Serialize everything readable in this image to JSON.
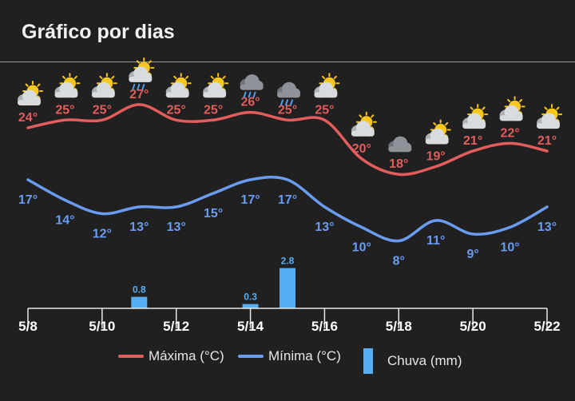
{
  "header": {
    "title": "Gráfico por dias"
  },
  "colors": {
    "max": "#e35d5d",
    "min": "#6a9cf2",
    "rain": "#57aef2",
    "axis": "#e8e8e8",
    "bg": "#202020"
  },
  "legend": {
    "max_label": "Máxima (°C)",
    "min_label": "Mínima (°C)",
    "rain_label": "Chuva (mm)"
  },
  "chart_data": {
    "type": "line",
    "x_tick_labels": [
      "5/8",
      "5/10",
      "5/12",
      "5/14",
      "5/16",
      "5/18",
      "5/20",
      "5/22"
    ],
    "days": [
      "5/8",
      "5/9",
      "5/10",
      "5/11",
      "5/12",
      "5/13",
      "5/14",
      "5/15",
      "5/16",
      "5/17",
      "5/18",
      "5/19",
      "5/20",
      "5/21",
      "5/22"
    ],
    "series": [
      {
        "name": "Máxima (°C)",
        "values": [
          24,
          25,
          25,
          27,
          25,
          25,
          26,
          25,
          25,
          20,
          18,
          19,
          21,
          22,
          21
        ],
        "labels": [
          "24°",
          "25°",
          "25°",
          "27°",
          "25°",
          "25°",
          "26°",
          "25°",
          "25°",
          "20°",
          "18°",
          "19°",
          "21°",
          "22°",
          "21°"
        ]
      },
      {
        "name": "Mínima (°C)",
        "values": [
          17,
          14,
          12,
          13,
          13,
          15,
          17,
          17,
          13,
          10,
          8,
          11,
          9,
          10,
          13
        ],
        "labels": [
          "17°",
          "14°",
          "12°",
          "13°",
          "13°",
          "15°",
          "17°",
          "17°",
          "13°",
          "10°",
          "8°",
          "11°",
          "9°",
          "10°",
          "13°"
        ]
      }
    ],
    "rain": {
      "name": "Chuva (mm)",
      "values": [
        0,
        0,
        0,
        0.8,
        0,
        0,
        0.3,
        2.8,
        0,
        0,
        0,
        0,
        0,
        0,
        0
      ],
      "labels": [
        "",
        "",
        "",
        "0.8",
        "",
        "",
        "0.3",
        "2.8",
        "",
        "",
        "",
        "",
        "",
        "",
        ""
      ]
    },
    "icons": [
      "partly-cloudy-icon",
      "partly-cloudy-icon",
      "partly-cloudy-icon",
      "sun-rain-icon",
      "partly-cloudy-icon",
      "partly-cloudy-icon",
      "cloud-rain-icon",
      "cloud-rain-icon",
      "partly-cloudy-icon",
      "partly-cloudy-icon",
      "cloudy-icon",
      "partly-cloudy-icon",
      "partly-cloudy-icon",
      "partly-cloudy-icon",
      "partly-cloudy-icon"
    ]
  }
}
